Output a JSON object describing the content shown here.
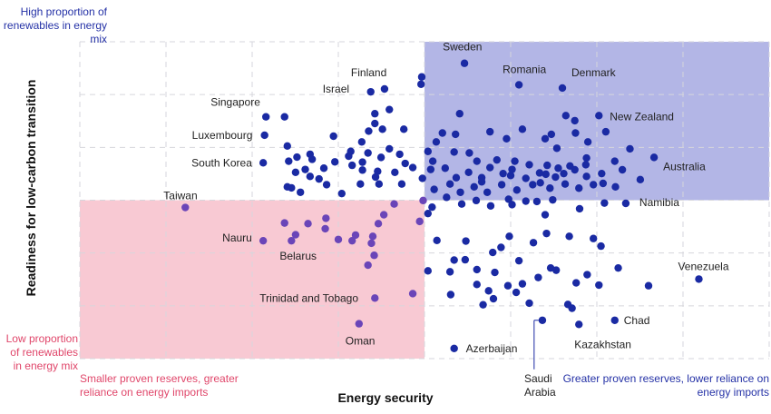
{
  "chart_data": {
    "type": "scatter",
    "xlabel": "Energy security",
    "ylabel": "Readiness for low-carbon transition",
    "xlim": [
      0,
      100
    ],
    "ylim": [
      0,
      100
    ],
    "grid": true,
    "quadrant_colors": {
      "high": "#b3b6e6",
      "low": "#f8c9d3"
    },
    "point_colors": {
      "blue": "#1a2aa3",
      "purple": "#6a45b8"
    },
    "corner_annotations": {
      "top_left": "High proportion of renewables in energy mix",
      "bottom_left": "Low proportion of renewables in energy mix",
      "bottom_axis_left": "Smaller proven reserves, greater reliance on energy imports",
      "bottom_axis_right": "Greater proven reserves, lower reliance on energy imports"
    },
    "labeled_points": [
      {
        "name": "Sweden",
        "x": 55.8,
        "y": 93.2
      },
      {
        "name": "Finland",
        "x": 44.2,
        "y": 85.1
      },
      {
        "name": "Romania",
        "x": 63.7,
        "y": 86.4
      },
      {
        "name": "Denmark",
        "x": 70.0,
        "y": 85.4
      },
      {
        "name": "Israel",
        "x": 42.2,
        "y": 84.2
      },
      {
        "name": "Singapore",
        "x": 27.0,
        "y": 76.3
      },
      {
        "name": "New Zealand",
        "x": 75.3,
        "y": 76.7
      },
      {
        "name": "Luxembourg",
        "x": 26.8,
        "y": 70.5
      },
      {
        "name": "South Korea",
        "x": 26.6,
        "y": 61.8
      },
      {
        "name": "Australia",
        "x": 83.3,
        "y": 63.5
      },
      {
        "name": "Taiwan",
        "x": 15.3,
        "y": 47.7
      },
      {
        "name": "Namibia",
        "x": 79.2,
        "y": 49.0
      },
      {
        "name": "Nauru",
        "x": 26.6,
        "y": 37.2
      },
      {
        "name": "Belarus",
        "x": 30.7,
        "y": 37.2
      },
      {
        "name": "Venezuela",
        "x": 89.8,
        "y": 25.1
      },
      {
        "name": "Trinidad and Tobago",
        "x": 42.8,
        "y": 19.1
      },
      {
        "name": "Chad",
        "x": 77.6,
        "y": 12.1
      },
      {
        "name": "Oman",
        "x": 40.5,
        "y": 11.0
      },
      {
        "name": "Saudi Arabia",
        "x": 67.1,
        "y": 12.1
      },
      {
        "name": "Kazakhstan",
        "x": 72.4,
        "y": 10.8
      },
      {
        "name": "Azerbaijan",
        "x": 54.3,
        "y": 3.2
      }
    ],
    "points": [
      [
        49.6,
        88.9
      ],
      [
        49.5,
        86.6
      ],
      [
        55.1,
        77.3
      ],
      [
        52.6,
        71.2
      ],
      [
        54.5,
        70.8
      ],
      [
        59.5,
        71.6
      ],
      [
        61.9,
        69.4
      ],
      [
        64.2,
        72.4
      ],
      [
        68.4,
        70.8
      ],
      [
        70.5,
        76.7
      ],
      [
        71.8,
        75.1
      ],
      [
        73.7,
        68.4
      ],
      [
        71.9,
        71.2
      ],
      [
        76.3,
        71.6
      ],
      [
        67.5,
        69.4
      ],
      [
        69.2,
        66.4
      ],
      [
        50.5,
        65.4
      ],
      [
        51.7,
        68.4
      ],
      [
        54.3,
        65.2
      ],
      [
        56.5,
        64.9
      ],
      [
        57.6,
        62.3
      ],
      [
        59.5,
        60.3
      ],
      [
        61.4,
        58.4
      ],
      [
        63.1,
        62.3
      ],
      [
        65.2,
        61.2
      ],
      [
        66.7,
        58.6
      ],
      [
        67.8,
        61.0
      ],
      [
        70.2,
        58.4
      ],
      [
        71.8,
        59.6
      ],
      [
        73.4,
        61.2
      ],
      [
        75.7,
        58.4
      ],
      [
        77.6,
        62.3
      ],
      [
        79.8,
        66.2
      ],
      [
        81.3,
        56.5
      ],
      [
        78.7,
        59.6
      ],
      [
        74.5,
        54.9
      ],
      [
        72.4,
        53.8
      ],
      [
        70.4,
        55.1
      ],
      [
        68.2,
        53.8
      ],
      [
        65.7,
        54.9
      ],
      [
        63.4,
        53.2
      ],
      [
        61.2,
        54.9
      ],
      [
        59.1,
        52.5
      ],
      [
        57.2,
        54.2
      ],
      [
        55.2,
        52.5
      ],
      [
        53.7,
        55.1
      ],
      [
        51.4,
        53.4
      ],
      [
        49.7,
        56.9
      ],
      [
        50.9,
        59.7
      ],
      [
        53.0,
        60.1
      ],
      [
        56.4,
        58.8
      ],
      [
        58.3,
        57.1
      ],
      [
        60.5,
        62.7
      ],
      [
        62.5,
        57.8
      ],
      [
        64.7,
        56.9
      ],
      [
        66.8,
        55.5
      ],
      [
        69.0,
        57.3
      ],
      [
        71.1,
        60.8
      ],
      [
        73.5,
        57.5
      ],
      [
        75.9,
        55.3
      ],
      [
        77.7,
        54.2
      ],
      [
        68.6,
        50.1
      ],
      [
        64.7,
        49.7
      ],
      [
        62.2,
        50.3
      ],
      [
        59.6,
        48.2
      ],
      [
        57.5,
        49.9
      ],
      [
        55.4,
        48.8
      ],
      [
        53.2,
        50.9
      ],
      [
        51.1,
        47.8
      ],
      [
        49.8,
        49.9
      ],
      [
        76.1,
        49.1
      ],
      [
        72.5,
        47.3
      ],
      [
        67.5,
        45.4
      ],
      [
        66.3,
        49.6
      ],
      [
        62.7,
        48.6
      ],
      [
        69.4,
        60.1
      ],
      [
        73.5,
        63.3
      ],
      [
        67.6,
        58.2
      ],
      [
        62.7,
        59.7
      ],
      [
        58.3,
        55.8
      ],
      [
        54.6,
        57.1
      ],
      [
        51.2,
        62.3
      ],
      [
        48.3,
        60.3
      ],
      [
        47.2,
        61.6
      ],
      [
        46.4,
        64.5
      ],
      [
        45.7,
        58.8
      ],
      [
        44.9,
        66.2
      ],
      [
        43.7,
        63.5
      ],
      [
        43.4,
        55.1
      ],
      [
        42.9,
        57.3
      ],
      [
        41.0,
        59.5
      ],
      [
        40.7,
        55.1
      ],
      [
        39.3,
        65.4
      ],
      [
        38.0,
        52.1
      ],
      [
        37.0,
        62.1
      ],
      [
        35.8,
        54.9
      ],
      [
        35.4,
        60.1
      ],
      [
        34.7,
        56.7
      ],
      [
        33.4,
        57.5
      ],
      [
        33.7,
        62.9
      ],
      [
        31.5,
        63.6
      ],
      [
        30.7,
        53.9
      ],
      [
        32.0,
        52.5
      ],
      [
        31.3,
        58.8
      ],
      [
        30.1,
        54.2
      ],
      [
        30.3,
        62.3
      ],
      [
        39.5,
        61.0
      ],
      [
        40.9,
        68.4
      ],
      [
        41.9,
        71.8
      ],
      [
        43.9,
        72.4
      ],
      [
        42.8,
        74.2
      ],
      [
        44.9,
        78.6
      ],
      [
        47.0,
        72.4
      ],
      [
        42.8,
        77.3
      ],
      [
        43.2,
        59.1
      ],
      [
        39.0,
        63.9
      ],
      [
        36.8,
        70.2
      ],
      [
        33.4,
        64.5
      ],
      [
        32.7,
        59.7
      ],
      [
        29.7,
        76.3
      ],
      [
        30.1,
        67.1
      ],
      [
        41.0,
        62.0
      ],
      [
        41.8,
        64.9
      ],
      [
        46.7,
        55.1
      ],
      [
        45.6,
        48.8
      ],
      [
        44.1,
        45.4
      ],
      [
        43.3,
        42.6
      ],
      [
        42.5,
        38.6
      ],
      [
        42.7,
        32.6
      ],
      [
        41.8,
        29.5
      ],
      [
        42.3,
        36.4
      ],
      [
        37.5,
        37.6
      ],
      [
        35.6,
        41.0
      ],
      [
        35.7,
        44.3
      ],
      [
        33.1,
        42.6
      ],
      [
        29.7,
        42.8
      ],
      [
        39.5,
        37.2
      ],
      [
        40.0,
        39.0
      ],
      [
        31.3,
        39.1
      ],
      [
        49.3,
        43.3
      ],
      [
        50.5,
        27.7
      ],
      [
        51.8,
        37.3
      ],
      [
        53.7,
        27.4
      ],
      [
        55.9,
        31.2
      ],
      [
        57.6,
        28.1
      ],
      [
        59.9,
        33.5
      ],
      [
        61.1,
        35.1
      ],
      [
        62.3,
        38.6
      ],
      [
        65.8,
        36.6
      ],
      [
        67.7,
        39.5
      ],
      [
        71.0,
        38.6
      ],
      [
        74.5,
        37.9
      ],
      [
        75.6,
        35.5
      ],
      [
        78.1,
        28.6
      ],
      [
        82.5,
        23.0
      ],
      [
        72.0,
        23.9
      ],
      [
        69.1,
        27.9
      ],
      [
        66.5,
        25.6
      ],
      [
        64.2,
        23.6
      ],
      [
        62.1,
        23.0
      ],
      [
        60.0,
        18.9
      ],
      [
        59.3,
        21.4
      ],
      [
        57.6,
        23.4
      ],
      [
        63.3,
        20.9
      ],
      [
        65.2,
        17.5
      ],
      [
        71.4,
        15.9
      ],
      [
        75.3,
        23.2
      ],
      [
        68.3,
        28.6
      ],
      [
        63.7,
        30.9
      ],
      [
        60.2,
        27.2
      ],
      [
        70.8,
        17.1
      ],
      [
        73.6,
        26.5
      ],
      [
        48.3,
        20.5
      ],
      [
        53.8,
        20.2
      ],
      [
        58.5,
        17.0
      ],
      [
        54.3,
        31.1
      ],
      [
        56.0,
        37.1
      ],
      [
        50.5,
        45.8
      ]
    ]
  }
}
